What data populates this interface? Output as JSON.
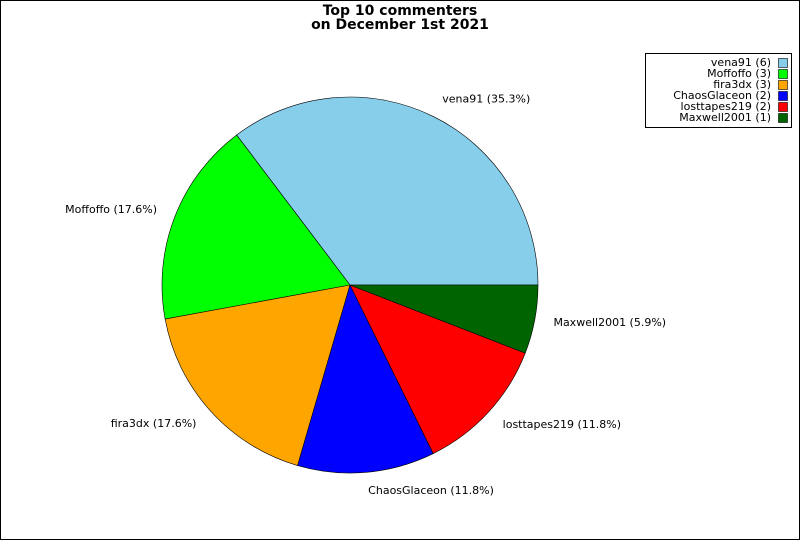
{
  "chart_data": {
    "type": "pie",
    "title": [
      "Top 10 commenters",
      "on December 1st 2021"
    ],
    "categories": [
      "vena91 (6)",
      "Moffoffo (3)",
      "fira3dx (3)",
      "ChaosGlaceon (2)",
      "losttapes219 (2)",
      "Maxwell2001 (1)"
    ],
    "values": [
      35.3,
      17.6,
      17.6,
      11.8,
      11.8,
      5.9
    ],
    "value_labels": [
      "vena91 (35.3%)",
      "Moffoffo (17.6%)",
      "fira3dx (17.6%)",
      "ChaosGlaceon (11.8%)",
      "losttapes219 (11.8%)",
      "Maxwell2001 (5.9%)"
    ],
    "colors": [
      "#87ceeb",
      "#00ff00",
      "#ffa500",
      "#0000ff",
      "#ff0000",
      "#006400"
    ],
    "legend": "upper right"
  }
}
